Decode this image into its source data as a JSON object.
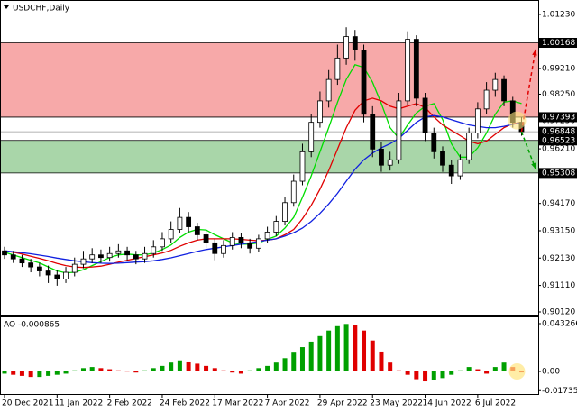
{
  "chart_data": {
    "type": "candlestick",
    "title": "USDCHF,Daily",
    "categories": [
      "20 Dec 2021",
      null,
      null,
      null,
      null,
      null,
      "11 Jan 2022",
      null,
      null,
      null,
      null,
      null,
      "2 Feb 2022",
      null,
      null,
      null,
      null,
      null,
      "24 Feb 2022",
      null,
      null,
      null,
      null,
      null,
      "17 Mar 2022",
      null,
      null,
      null,
      null,
      null,
      "7 Apr 2022",
      null,
      null,
      null,
      null,
      null,
      "29 Apr 2022",
      null,
      null,
      null,
      null,
      null,
      "23 May 2022",
      null,
      null,
      null,
      null,
      null,
      "14 Jun 2022",
      null,
      null,
      null,
      null,
      null,
      "6 Jul 2022",
      null,
      null,
      null,
      null,
      null
    ],
    "open": [
      0.924,
      0.9225,
      0.921,
      0.9195,
      0.918,
      0.9165,
      0.915,
      0.9135,
      0.916,
      0.919,
      0.921,
      0.9225,
      0.9215,
      0.923,
      0.924,
      0.9225,
      0.921,
      0.923,
      0.9255,
      0.9285,
      0.932,
      0.9365,
      0.933,
      0.93,
      0.927,
      0.923,
      0.926,
      0.929,
      0.927,
      0.925,
      0.9285,
      0.931,
      0.935,
      0.942,
      0.95,
      0.961,
      0.972,
      0.98,
      0.988,
      0.996,
      1.004,
      0.999,
      0.975,
      0.962,
      0.956,
      0.958,
      0.98,
      1.003,
      0.981,
      0.968,
      0.961,
      0.956,
      0.952,
      0.958,
      0.968,
      0.977,
      0.984,
      0.988,
      0.98,
      0.972
    ],
    "high": [
      0.9255,
      0.924,
      0.9225,
      0.921,
      0.9195,
      0.9185,
      0.917,
      0.918,
      0.9215,
      0.924,
      0.925,
      0.9245,
      0.9255,
      0.9265,
      0.9255,
      0.924,
      0.9255,
      0.928,
      0.931,
      0.935,
      0.94,
      0.9385,
      0.9345,
      0.932,
      0.9285,
      0.928,
      0.931,
      0.9305,
      0.9285,
      0.93,
      0.933,
      0.937,
      0.944,
      0.9525,
      0.964,
      0.975,
      0.9835,
      0.9915,
      1.001,
      1.0075,
      1.0065,
      1.001,
      0.978,
      0.9645,
      0.961,
      0.983,
      1.006,
      1.0045,
      0.983,
      0.97,
      0.963,
      0.958,
      0.96,
      0.97,
      0.9795,
      0.987,
      0.9905,
      0.9895,
      0.9815,
      0.974
    ],
    "low": [
      0.921,
      0.9195,
      0.918,
      0.916,
      0.9145,
      0.912,
      0.911,
      0.912,
      0.9145,
      0.9175,
      0.9195,
      0.9195,
      0.92,
      0.9215,
      0.9205,
      0.919,
      0.9195,
      0.9215,
      0.924,
      0.927,
      0.9305,
      0.931,
      0.928,
      0.925,
      0.9205,
      0.9215,
      0.9245,
      0.925,
      0.923,
      0.9235,
      0.927,
      0.9295,
      0.9335,
      0.9405,
      0.9485,
      0.959,
      0.97,
      0.9775,
      0.986,
      0.9935,
      0.995,
      0.972,
      0.959,
      0.9535,
      0.954,
      0.9565,
      0.9785,
      0.978,
      0.965,
      0.9585,
      0.9535,
      0.949,
      0.9505,
      0.9565,
      0.966,
      0.975,
      0.9815,
      0.978,
      0.97,
      0.967
    ],
    "close": [
      0.9225,
      0.921,
      0.9195,
      0.918,
      0.9165,
      0.915,
      0.9135,
      0.916,
      0.919,
      0.921,
      0.9225,
      0.9215,
      0.923,
      0.924,
      0.9225,
      0.921,
      0.923,
      0.9255,
      0.9285,
      0.932,
      0.9365,
      0.933,
      0.93,
      0.927,
      0.923,
      0.926,
      0.929,
      0.927,
      0.925,
      0.9285,
      0.931,
      0.935,
      0.942,
      0.95,
      0.961,
      0.972,
      0.98,
      0.988,
      0.996,
      1.004,
      0.999,
      0.975,
      0.962,
      0.956,
      0.958,
      0.98,
      1.003,
      0.981,
      0.968,
      0.961,
      0.956,
      0.952,
      0.958,
      0.968,
      0.977,
      0.984,
      0.988,
      0.98,
      0.972,
      0.96848
    ],
    "moving_averages": [
      {
        "color": "#00dd00",
        "values": [
          0.9235,
          0.9225,
          0.9215,
          0.9205,
          0.9195,
          0.918,
          0.9165,
          0.9158,
          0.916,
          0.917,
          0.9185,
          0.92,
          0.9215,
          0.9225,
          0.9228,
          0.9225,
          0.9225,
          0.9232,
          0.9245,
          0.9262,
          0.929,
          0.931,
          0.932,
          0.9318,
          0.93,
          0.9285,
          0.927,
          0.9265,
          0.9265,
          0.927,
          0.9283,
          0.9295,
          0.9325,
          0.9365,
          0.944,
          0.952,
          0.961,
          0.97,
          0.9795,
          0.988,
          0.9935,
          0.9925,
          0.987,
          0.979,
          0.97,
          0.966,
          0.971,
          0.9755,
          0.978,
          0.979,
          0.973,
          0.964,
          0.959,
          0.959,
          0.9625,
          0.968,
          0.975,
          0.9795,
          0.98,
          0.979
        ]
      },
      {
        "color": "#e00000",
        "values": [
          0.924,
          0.9235,
          0.9228,
          0.922,
          0.9212,
          0.9203,
          0.9193,
          0.9185,
          0.918,
          0.9178,
          0.918,
          0.9183,
          0.919,
          0.9198,
          0.9205,
          0.9212,
          0.9218,
          0.9225,
          0.9232,
          0.9242,
          0.9257,
          0.927,
          0.928,
          0.9285,
          0.9285,
          0.9285,
          0.9285,
          0.9283,
          0.928,
          0.9278,
          0.928,
          0.9285,
          0.93,
          0.932,
          0.936,
          0.941,
          0.947,
          0.954,
          0.962,
          0.97,
          0.9765,
          0.98,
          0.981,
          0.98,
          0.978,
          0.977,
          0.978,
          0.979,
          0.9775,
          0.974,
          0.971,
          0.969,
          0.967,
          0.965,
          0.964,
          0.965,
          0.9675,
          0.97,
          0.9715,
          0.972
        ]
      },
      {
        "color": "#1020e0",
        "values": [
          0.924,
          0.9237,
          0.9233,
          0.9229,
          0.9224,
          0.9219,
          0.9213,
          0.9208,
          0.9203,
          0.9199,
          0.9196,
          0.9194,
          0.9193,
          0.9194,
          0.9196,
          0.9198,
          0.92,
          0.9203,
          0.9208,
          0.9214,
          0.9222,
          0.923,
          0.9238,
          0.9245,
          0.925,
          0.9255,
          0.926,
          0.9265,
          0.927,
          0.9275,
          0.928,
          0.9285,
          0.9295,
          0.9308,
          0.9325,
          0.935,
          0.938,
          0.9415,
          0.9455,
          0.95,
          0.9545,
          0.958,
          0.9605,
          0.9625,
          0.964,
          0.966,
          0.969,
          0.972,
          0.974,
          0.9745,
          0.974,
          0.973,
          0.972,
          0.971,
          0.9705,
          0.97,
          0.97,
          0.9705,
          0.9712,
          0.972
        ]
      }
    ],
    "ylim": [
      0.90019,
      1.01767
    ],
    "yticks": [
      {
        "value": 1.0123,
        "label": "1.01230"
      },
      {
        "value": 0.9921,
        "label": "0.99210"
      },
      {
        "value": 0.9825,
        "label": "0.98250"
      },
      {
        "value": 0.9725,
        "label": "0.97250"
      },
      {
        "value": 0.9621,
        "label": "0.96210"
      },
      {
        "value": 0.9417,
        "label": "0.94170"
      },
      {
        "value": 0.9315,
        "label": "0.93150"
      },
      {
        "value": 0.9213,
        "label": "0.92130"
      },
      {
        "value": 0.9111,
        "label": "0.91110"
      },
      {
        "value": 0.9012,
        "label": "0.90120"
      }
    ],
    "zones": [
      {
        "from": 1.00168,
        "to": 0.97393,
        "color": "#f7a9a9"
      },
      {
        "from": 0.96523,
        "to": 0.95308,
        "color": "#a9d6a9"
      }
    ],
    "levels": [
      {
        "value": 1.00168,
        "label": "1.00168"
      },
      {
        "value": 0.97393,
        "label": "0.97393"
      },
      {
        "value": 0.96848,
        "label": "0.96848"
      },
      {
        "value": 0.96523,
        "label": "0.96523"
      },
      {
        "value": 0.95308,
        "label": "0.95308"
      }
    ],
    "forecast": [
      {
        "value": 0.9992,
        "color": "#e00000"
      },
      {
        "value": 0.9546,
        "color": "#00a000"
      }
    ],
    "ao": {
      "title": "AO -0.000865",
      "up_color": "#00a000",
      "down_color": "#e00000",
      "values": [
        -0.002,
        -0.003,
        -0.004,
        -0.005,
        -0.005,
        -0.004,
        -0.003,
        -0.002,
        0.001,
        0.003,
        0.004,
        0.003,
        0.002,
        0.001,
        0.0005,
        -0.001,
        0.001,
        0.003,
        0.005,
        0.008,
        0.01,
        0.009,
        0.007,
        0.005,
        0.003,
        0.001,
        -0.001,
        -0.002,
        0.001,
        0.003,
        0.005,
        0.008,
        0.012,
        0.017,
        0.022,
        0.027,
        0.032,
        0.037,
        0.041,
        0.043,
        0.042,
        0.037,
        0.028,
        0.018,
        0.008,
        0.001,
        -0.003,
        -0.007,
        -0.009,
        -0.008,
        -0.006,
        -0.003,
        0.001,
        0.004,
        0.002,
        -0.002,
        0.004,
        0.008,
        0.004,
        -0.000865
      ],
      "ylim": [
        -0.02041,
        0.04898
      ],
      "yticks": [
        0.043266,
        {
          "value": 0,
          "label": "0.00"
        },
        -0.017351
      ]
    }
  }
}
